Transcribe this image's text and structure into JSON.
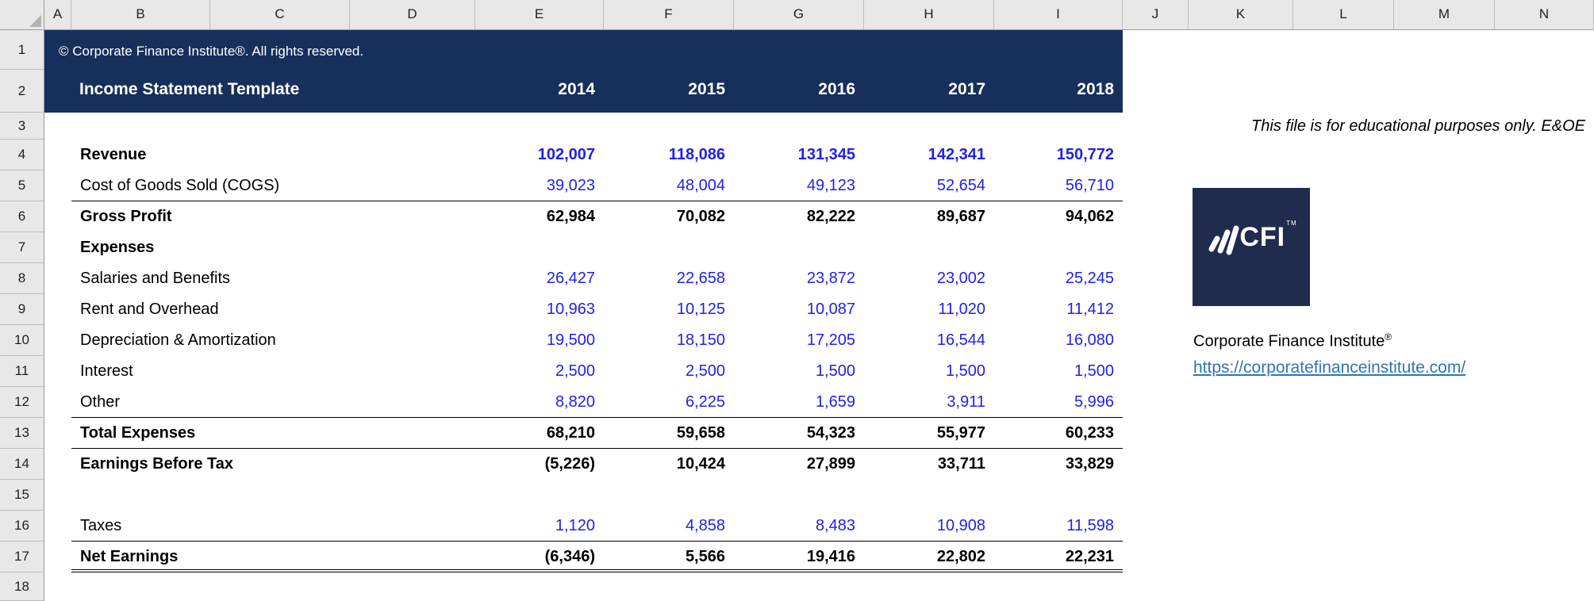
{
  "spreadsheet": {
    "column_headers": [
      "A",
      "B",
      "C",
      "D",
      "E",
      "F",
      "G",
      "H",
      "I",
      "J",
      "K",
      "L",
      "M",
      "N"
    ],
    "row_headers": [
      "1",
      "2",
      "3",
      "4",
      "5",
      "6",
      "7",
      "8",
      "9",
      "10",
      "11",
      "12",
      "13",
      "14",
      "15",
      "16",
      "17",
      "18"
    ]
  },
  "banner": {
    "copyright": "© Corporate Finance Institute®. All rights reserved.",
    "title": "Income Statement Template",
    "years": [
      "2014",
      "2015",
      "2016",
      "2017",
      "2018"
    ]
  },
  "statement": {
    "rows": [
      {
        "label": "Revenue",
        "label_bold": true,
        "values": [
          "102,007",
          "118,086",
          "131,345",
          "142,341",
          "150,772"
        ],
        "value_style": "blue-bold",
        "underline": "none"
      },
      {
        "label": "Cost of Goods Sold (COGS)",
        "label_bold": false,
        "values": [
          "39,023",
          "48,004",
          "49,123",
          "52,654",
          "56,710"
        ],
        "value_style": "blue",
        "underline": "single"
      },
      {
        "label": "Gross Profit",
        "label_bold": true,
        "values": [
          "62,984",
          "70,082",
          "82,222",
          "89,687",
          "94,062"
        ],
        "value_style": "black-bold",
        "underline": "none"
      },
      {
        "label": "Expenses",
        "label_bold": true,
        "values": [
          "",
          "",
          "",
          "",
          ""
        ],
        "value_style": "blue",
        "underline": "none"
      },
      {
        "label": "Salaries and Benefits",
        "label_bold": false,
        "values": [
          "26,427",
          "22,658",
          "23,872",
          "23,002",
          "25,245"
        ],
        "value_style": "blue",
        "underline": "none"
      },
      {
        "label": "Rent and Overhead",
        "label_bold": false,
        "values": [
          "10,963",
          "10,125",
          "10,087",
          "11,020",
          "11,412"
        ],
        "value_style": "blue",
        "underline": "none"
      },
      {
        "label": "Depreciation & Amortization",
        "label_bold": false,
        "values": [
          "19,500",
          "18,150",
          "17,205",
          "16,544",
          "16,080"
        ],
        "value_style": "blue",
        "underline": "none"
      },
      {
        "label": "Interest",
        "label_bold": false,
        "values": [
          "2,500",
          "2,500",
          "1,500",
          "1,500",
          "1,500"
        ],
        "value_style": "blue",
        "underline": "none"
      },
      {
        "label": "Other",
        "label_bold": false,
        "values": [
          "8,820",
          "6,225",
          "1,659",
          "3,911",
          "5,996"
        ],
        "value_style": "blue",
        "underline": "single"
      },
      {
        "label": "Total Expenses",
        "label_bold": true,
        "values": [
          "68,210",
          "59,658",
          "54,323",
          "55,977",
          "60,233"
        ],
        "value_style": "black-bold",
        "underline": "single"
      },
      {
        "label": "Earnings Before Tax",
        "label_bold": true,
        "values": [
          "(5,226)",
          "10,424",
          "27,899",
          "33,711",
          "33,829"
        ],
        "value_style": "black-bold",
        "underline": "none"
      },
      {
        "label": "",
        "label_bold": false,
        "values": [
          "",
          "",
          "",
          "",
          ""
        ],
        "value_style": "blue",
        "underline": "none"
      },
      {
        "label": "Taxes",
        "label_bold": false,
        "values": [
          "1,120",
          "4,858",
          "8,483",
          "10,908",
          "11,598"
        ],
        "value_style": "blue",
        "underline": "single"
      },
      {
        "label": "Net Earnings",
        "label_bold": true,
        "values": [
          "(6,346)",
          "5,566",
          "19,416",
          "22,802",
          "22,231"
        ],
        "value_style": "black-bold",
        "underline": "double"
      }
    ]
  },
  "side_panel": {
    "disclaimer": "This file is for educational purposes only. E&OE",
    "logo_text": "CFI",
    "logo_tm": "TM",
    "org_name": "Corporate Finance Institute",
    "org_mark": "®",
    "link": "https://corporatefinanceinstitute.com/"
  },
  "colors": {
    "banner_navy": "#17305B",
    "logo_navy": "#1F2C4E",
    "value_blue": "#2222E2",
    "link_blue": "#2E75B6",
    "header_gray": "#E8E8E8"
  }
}
